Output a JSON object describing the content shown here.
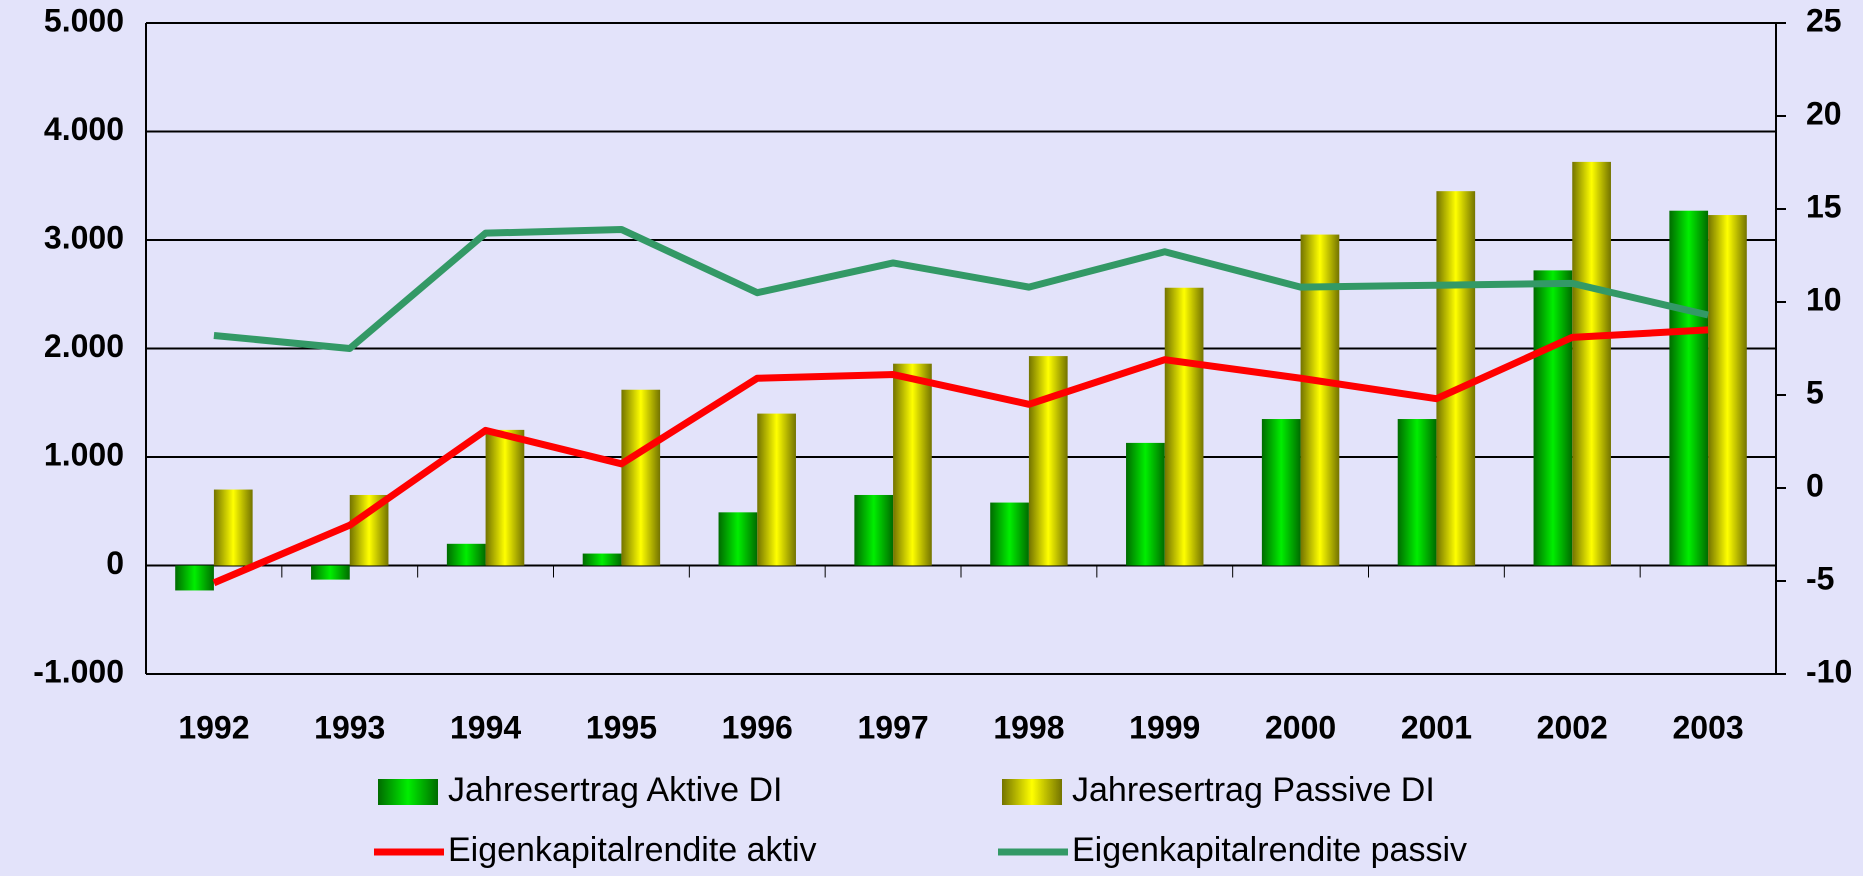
{
  "chart_data": {
    "type": "bar_line",
    "categories": [
      "1992",
      "1993",
      "1994",
      "1995",
      "1996",
      "1997",
      "1998",
      "1999",
      "2000",
      "2001",
      "2002",
      "2003"
    ],
    "series": [
      {
        "name": "Jahresertrag Aktive DI",
        "type": "bar",
        "color": "#00ee00",
        "values": [
          -230,
          -130,
          200,
          110,
          490,
          650,
          580,
          1130,
          1350,
          1350,
          2720,
          3270
        ]
      },
      {
        "name": "Jahresertrag Passive DI",
        "type": "bar",
        "color": "#ffff00",
        "values": [
          700,
          650,
          1250,
          1620,
          1400,
          1860,
          1930,
          2560,
          3050,
          3450,
          3720,
          3230
        ]
      },
      {
        "name": "Eigenkapitalrendite aktiv",
        "type": "line",
        "axis": "y2",
        "color": "#ff0000",
        "values": [
          -5.1,
          -2.0,
          3.1,
          1.3,
          5.9,
          6.1,
          4.5,
          6.9,
          5.9,
          4.8,
          8.1,
          8.5
        ]
      },
      {
        "name": "Eigenkapitalrendite passiv",
        "type": "line",
        "axis": "y2",
        "color": "#339966",
        "values": [
          8.2,
          7.5,
          13.7,
          13.9,
          10.5,
          12.1,
          10.8,
          12.7,
          10.8,
          10.9,
          11.0,
          9.3
        ]
      }
    ],
    "ylim": [
      -1000,
      5000
    ],
    "yticks": [
      {
        "value": -1000,
        "label": "-1.000"
      },
      0,
      {
        "value": 1000,
        "label": "1.000"
      },
      {
        "value": 2000,
        "label": "2.000"
      },
      {
        "value": 3000,
        "label": "3.000"
      },
      {
        "value": 4000,
        "label": "4.000"
      },
      {
        "value": 5000,
        "label": "5.000"
      }
    ],
    "y2lim": [
      -10,
      25
    ],
    "y2ticks": [
      -10,
      -5,
      0,
      5,
      10,
      15,
      20,
      25
    ],
    "grid": true,
    "legend": "bottom"
  }
}
